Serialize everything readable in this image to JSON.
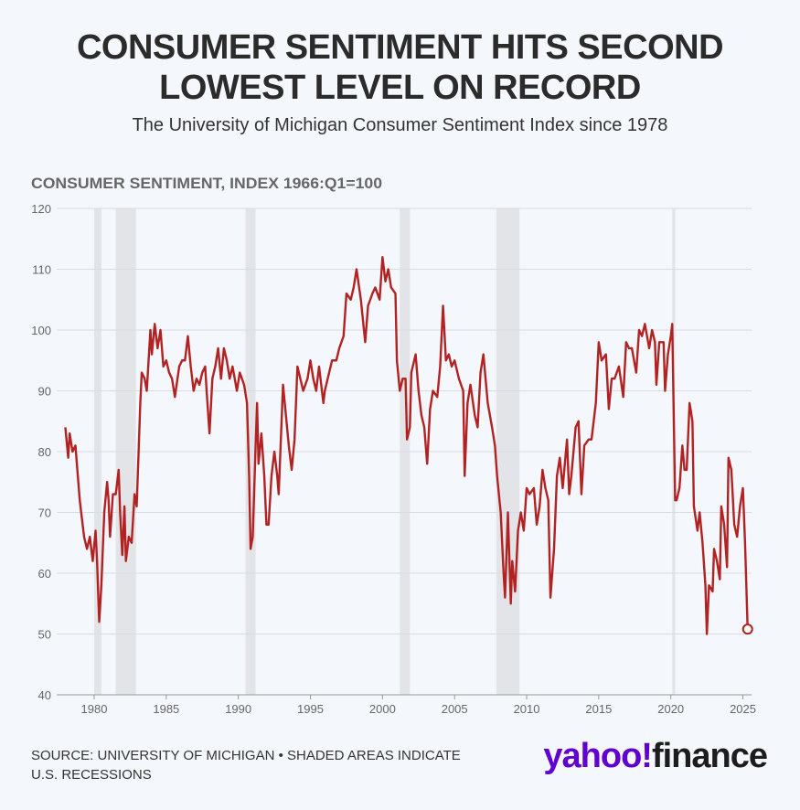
{
  "chart_data": {
    "type": "line",
    "title_lines": [
      "CONSUMER SENTIMENT HITS SECOND",
      "LOWEST LEVEL ON RECORD"
    ],
    "subtitle": "The University of Michigan Consumer Sentiment Index since 1978",
    "y_label": "CONSUMER SENTIMENT, INDEX 1966:Q1=100",
    "source": "SOURCE: UNIVERSITY OF MICHIGAN • SHADED AREAS INDICATE U.S. RECESSIONS",
    "brand": [
      "yahoo!",
      "finance"
    ],
    "color": "#b22222",
    "recession_color": "#e2e4e8",
    "grid": true,
    "xlim": [
      1977.4,
      2025.6
    ],
    "ylim": [
      40,
      120
    ],
    "xticks": [
      1980,
      1985,
      1990,
      1995,
      2000,
      2005,
      2010,
      2015,
      2020,
      2025
    ],
    "yticks": [
      40,
      50,
      60,
      70,
      80,
      90,
      100,
      110,
      120
    ],
    "recessions": [
      [
        1980.0,
        1980.5
      ],
      [
        1981.5,
        1982.9
      ],
      [
        1990.5,
        1991.2
      ],
      [
        2001.2,
        2001.9
      ],
      [
        2007.9,
        2009.5
      ],
      [
        2020.1,
        2020.3
      ]
    ],
    "x": [
      1978.0,
      1978.2,
      1978.3,
      1978.5,
      1978.7,
      1978.9,
      1979.0,
      1979.2,
      1979.3,
      1979.5,
      1979.7,
      1979.9,
      1980.1,
      1980.2,
      1980.35,
      1980.5,
      1980.7,
      1980.9,
      1981.0,
      1981.1,
      1981.3,
      1981.5,
      1981.7,
      1981.8,
      1981.95,
      1982.1,
      1982.2,
      1982.4,
      1982.6,
      1982.8,
      1982.95,
      1983.2,
      1983.3,
      1983.5,
      1983.65,
      1983.9,
      1984.0,
      1984.2,
      1984.4,
      1984.6,
      1984.8,
      1985.0,
      1985.2,
      1985.4,
      1985.6,
      1985.9,
      1986.1,
      1986.3,
      1986.5,
      1986.7,
      1986.9,
      1987.1,
      1987.3,
      1987.5,
      1987.7,
      1987.8,
      1988.0,
      1988.2,
      1988.4,
      1988.6,
      1988.8,
      1989.0,
      1989.2,
      1989.4,
      1989.6,
      1989.9,
      1990.1,
      1990.4,
      1990.6,
      1990.75,
      1990.85,
      1991.0,
      1991.2,
      1991.3,
      1991.4,
      1991.6,
      1991.8,
      1991.95,
      1992.1,
      1992.3,
      1992.5,
      1992.7,
      1992.8,
      1993.0,
      1993.1,
      1993.3,
      1993.5,
      1993.7,
      1993.9,
      1994.1,
      1994.3,
      1994.5,
      1994.8,
      1995.0,
      1995.2,
      1995.4,
      1995.6,
      1995.9,
      1996.0,
      1996.3,
      1996.5,
      1996.8,
      1997.0,
      1997.3,
      1997.5,
      1997.8,
      1998.0,
      1998.2,
      1998.5,
      1998.8,
      1999.0,
      1999.3,
      1999.5,
      1999.8,
      2000.0,
      2000.2,
      2000.4,
      2000.6,
      2000.9,
      2001.0,
      2001.2,
      2001.4,
      2001.6,
      2001.7,
      2001.9,
      2002.0,
      2002.3,
      2002.5,
      2002.7,
      2002.9,
      2003.1,
      2003.3,
      2003.5,
      2003.8,
      2004.0,
      2004.2,
      2004.4,
      2004.6,
      2004.8,
      2005.0,
      2005.3,
      2005.6,
      2005.7,
      2005.9,
      2006.1,
      2006.4,
      2006.6,
      2006.8,
      2007.0,
      2007.3,
      2007.6,
      2007.8,
      2007.95,
      2008.2,
      2008.4,
      2008.5,
      2008.7,
      2008.9,
      2009.0,
      2009.2,
      2009.4,
      2009.6,
      2009.8,
      2010.0,
      2010.2,
      2010.5,
      2010.7,
      2010.9,
      2011.1,
      2011.3,
      2011.5,
      2011.65,
      2011.9,
      2012.1,
      2012.3,
      2012.5,
      2012.8,
      2012.95,
      2013.1,
      2013.4,
      2013.6,
      2013.8,
      2014.0,
      2014.3,
      2014.5,
      2014.8,
      2015.0,
      2015.2,
      2015.5,
      2015.7,
      2015.9,
      2016.1,
      2016.4,
      2016.7,
      2016.9,
      2017.1,
      2017.3,
      2017.6,
      2017.8,
      2018.0,
      2018.2,
      2018.5,
      2018.7,
      2018.9,
      2019.0,
      2019.2,
      2019.5,
      2019.6,
      2019.8,
      2020.0,
      2020.1,
      2020.3,
      2020.4,
      2020.6,
      2020.8,
      2020.95,
      2021.1,
      2021.3,
      2021.5,
      2021.6,
      2021.85,
      2022.0,
      2022.2,
      2022.4,
      2022.5,
      2022.65,
      2022.9,
      2023.0,
      2023.2,
      2023.4,
      2023.5,
      2023.7,
      2023.9,
      2024.0,
      2024.2,
      2024.4,
      2024.6,
      2024.8,
      2025.0,
      2025.15,
      2025.33
    ],
    "values": [
      84,
      79,
      83,
      80,
      81,
      75,
      72,
      68,
      66,
      64,
      66,
      62,
      67,
      62,
      52,
      58,
      70,
      75,
      72,
      66,
      73,
      73,
      77,
      70,
      63,
      71,
      62,
      66,
      65,
      73,
      71,
      88,
      93,
      92,
      90,
      100,
      96,
      101,
      97,
      100,
      94,
      95,
      93,
      92,
      89,
      94,
      95,
      95,
      99,
      94,
      90,
      92,
      91,
      93,
      94,
      90,
      83,
      92,
      94,
      97,
      92,
      97,
      95,
      92,
      94,
      90,
      93,
      91,
      88,
      76,
      64,
      66,
      81,
      88,
      78,
      83,
      76,
      68,
      68,
      76,
      80,
      76,
      73,
      85,
      91,
      86,
      81,
      77,
      82,
      94,
      92,
      90,
      92,
      95,
      92,
      90,
      94,
      88,
      90,
      93,
      95,
      95,
      97,
      99,
      106,
      105,
      107,
      110,
      105,
      98,
      104,
      106,
      107,
      105,
      112,
      108,
      110,
      107,
      106,
      95,
      90,
      92,
      92,
      82,
      84,
      93,
      96,
      90,
      86,
      84,
      78,
      87,
      90,
      89,
      94,
      104,
      95,
      96,
      94,
      95,
      92,
      90,
      76,
      88,
      91,
      86,
      84,
      93,
      96,
      88,
      84,
      81,
      76,
      70,
      60,
      56,
      70,
      55,
      62,
      57,
      67,
      70,
      67,
      74,
      73,
      74,
      68,
      71,
      77,
      74,
      72,
      56,
      64,
      76,
      79,
      74,
      82,
      73,
      76,
      84,
      85,
      73,
      81,
      82,
      82,
      88,
      98,
      95,
      96,
      87,
      92,
      92,
      94,
      89,
      98,
      97,
      97,
      93,
      100,
      99,
      101,
      97,
      100,
      98,
      91,
      98,
      98,
      90,
      96,
      99,
      101,
      72,
      72,
      74,
      81,
      77,
      77,
      88,
      85,
      71,
      67,
      70,
      65,
      58,
      50,
      58,
      57,
      64,
      62,
      59,
      71,
      68,
      61,
      79,
      77,
      68,
      66,
      71,
      74,
      65,
      50.8
    ]
  }
}
